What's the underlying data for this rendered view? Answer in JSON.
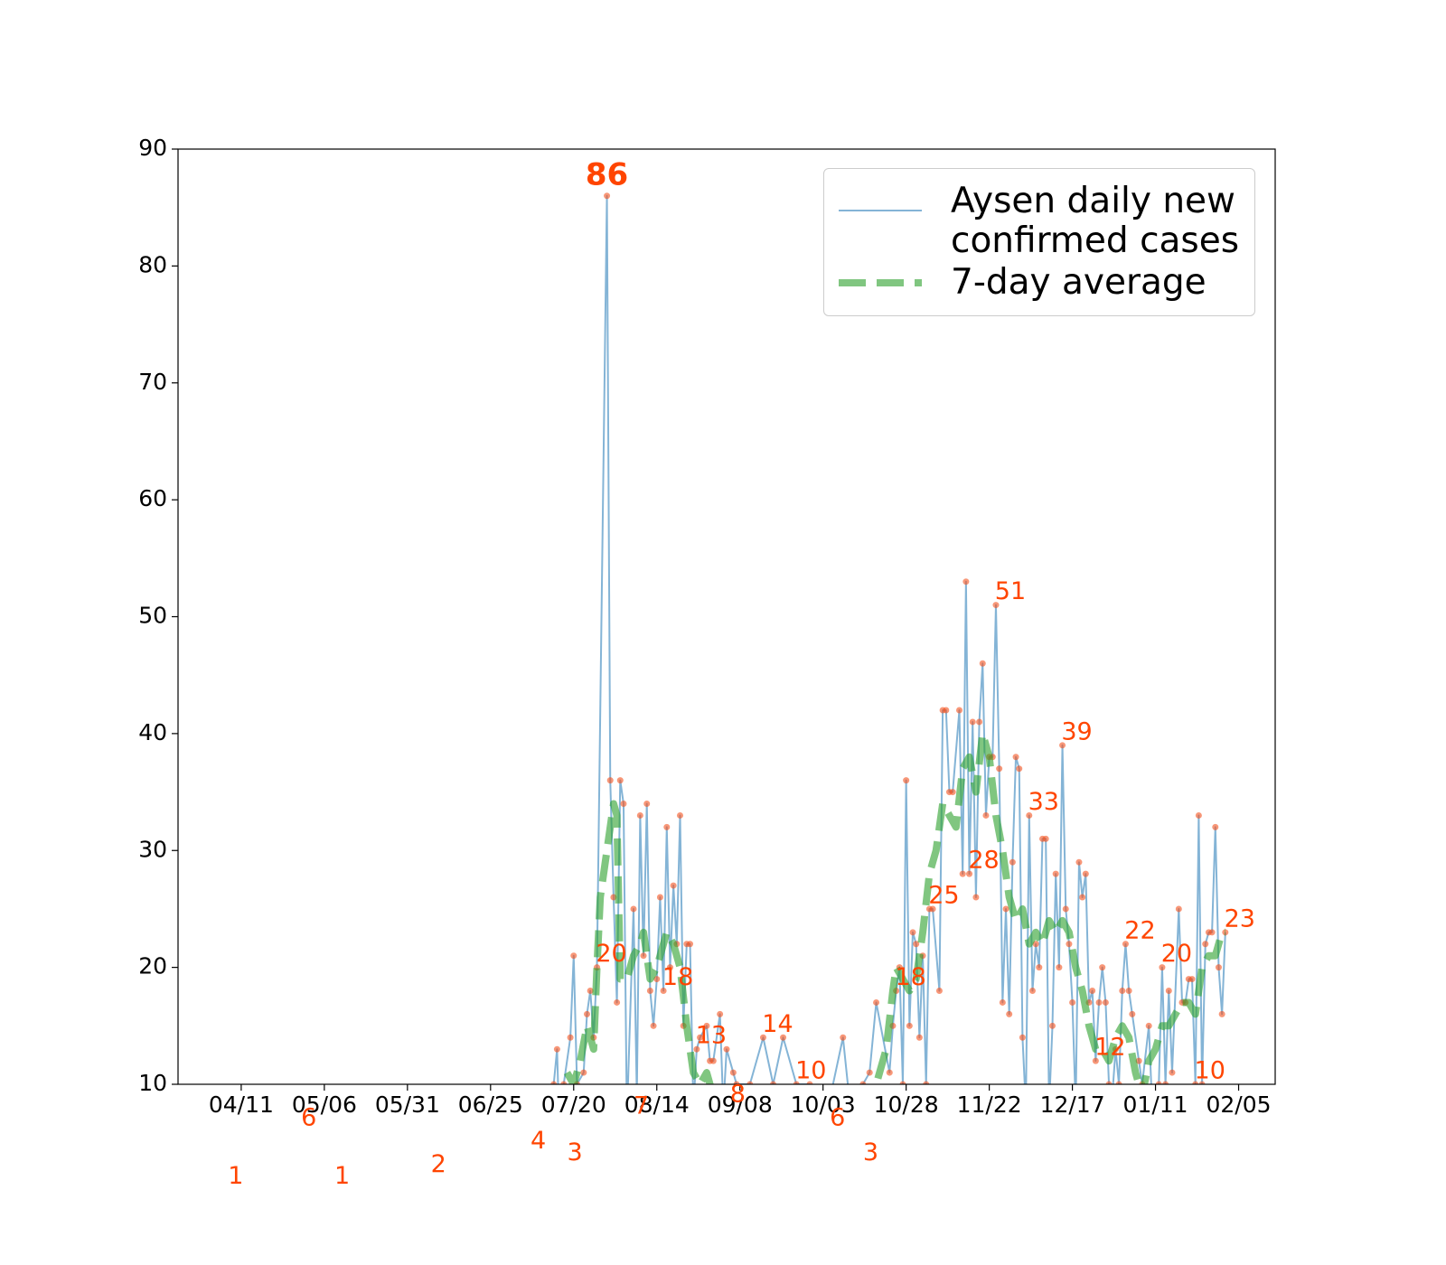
{
  "chart_data": {
    "type": "line",
    "legend": "upper right",
    "label_color": "#ff4500",
    "marker_color": "#f4511e",
    "xlim": [
      "03/23",
      "02/16"
    ],
    "xticks": [
      "04/11",
      "05/06",
      "05/31",
      "06/25",
      "07/20",
      "08/14",
      "09/08",
      "10/03",
      "10/28",
      "11/22",
      "12/17",
      "01/11",
      "02/05"
    ],
    "ylim": [
      10,
      90
    ],
    "yticks": [
      10,
      20,
      30,
      40,
      50,
      60,
      70,
      80,
      90
    ],
    "series": [
      {
        "name": "Aysen daily new confirmed cases",
        "color": "#1f77b4",
        "x": [
          "04/05",
          "04/27",
          "05/07",
          "06/05",
          "07/05",
          "07/14",
          "07/15",
          "07/16",
          "07/17",
          "07/19",
          "07/20",
          "07/21",
          "07/23",
          "07/24",
          "07/25",
          "07/26",
          "07/27",
          "07/30",
          "07/31",
          "08/01",
          "08/02",
          "08/03",
          "08/04",
          "08/05",
          "08/07",
          "08/08",
          "08/09",
          "08/10",
          "08/11",
          "08/12",
          "08/13",
          "08/14",
          "08/15",
          "08/16",
          "08/17",
          "08/18",
          "08/19",
          "08/20",
          "08/21",
          "08/22",
          "08/23",
          "08/24",
          "08/25",
          "08/26",
          "08/27",
          "08/29",
          "08/30",
          "08/31",
          "09/02",
          "09/03",
          "09/04",
          "09/06",
          "09/07",
          "09/11",
          "09/15",
          "09/18",
          "09/21",
          "09/25",
          "09/29",
          "10/03",
          "10/09",
          "10/13",
          "10/15",
          "10/17",
          "10/19",
          "10/23",
          "10/24",
          "10/25",
          "10/26",
          "10/27",
          "10/28",
          "10/29",
          "10/30",
          "10/31",
          "11/01",
          "11/02",
          "11/03",
          "11/04",
          "11/05",
          "11/07",
          "11/08",
          "11/09",
          "11/10",
          "11/11",
          "11/13",
          "11/14",
          "11/15",
          "11/16",
          "11/17",
          "11/18",
          "11/19",
          "11/20",
          "11/21",
          "11/22",
          "11/23",
          "11/24",
          "11/25",
          "11/26",
          "11/27",
          "11/28",
          "11/29",
          "11/30",
          "12/01",
          "12/02",
          "12/03",
          "12/04",
          "12/05",
          "12/06",
          "12/07",
          "12/08",
          "12/09",
          "12/10",
          "12/11",
          "12/12",
          "12/13",
          "12/14",
          "12/15",
          "12/16",
          "12/17",
          "12/18",
          "12/19",
          "12/20",
          "12/21",
          "12/22",
          "12/23",
          "12/24",
          "12/25",
          "12/26",
          "12/27",
          "12/28",
          "12/29",
          "12/30",
          "12/31",
          "01/01",
          "01/02",
          "01/03",
          "01/04",
          "01/06",
          "01/07",
          "01/09",
          "01/10",
          "01/12",
          "01/13",
          "01/14",
          "01/15",
          "01/16",
          "01/18",
          "01/19",
          "01/20",
          "01/21",
          "01/22",
          "01/23",
          "01/24",
          "01/25",
          "01/26",
          "01/27",
          "01/28",
          "01/29",
          "01/30",
          "01/31",
          "02/01"
        ],
        "values": [
          1,
          6,
          1,
          2,
          4,
          10,
          13,
          3,
          10,
          14,
          21,
          10,
          11,
          16,
          18,
          14,
          20,
          86,
          36,
          26,
          17,
          36,
          34,
          7,
          25,
          9,
          33,
          21,
          34,
          18,
          15,
          19,
          26,
          18,
          32,
          20,
          27,
          22,
          33,
          15,
          22,
          22,
          8,
          13,
          14,
          15,
          12,
          12,
          16,
          8,
          13,
          11,
          10,
          10,
          14,
          10,
          14,
          10,
          10,
          6,
          14,
          3,
          10,
          11,
          17,
          11,
          15,
          18,
          20,
          10,
          36,
          15,
          23,
          22,
          14,
          21,
          10,
          25,
          25,
          18,
          42,
          42,
          35,
          35,
          42,
          28,
          53,
          28,
          41,
          26,
          41,
          46,
          33,
          38,
          38,
          51,
          37,
          17,
          25,
          16,
          29,
          38,
          37,
          14,
          8,
          33,
          18,
          22,
          20,
          31,
          31,
          8,
          15,
          28,
          20,
          39,
          25,
          22,
          17,
          8,
          29,
          26,
          28,
          17,
          18,
          12,
          17,
          20,
          17,
          10,
          9,
          13,
          10,
          18,
          22,
          18,
          16,
          12,
          10,
          15,
          8,
          10,
          20,
          10,
          18,
          11,
          25,
          17,
          17,
          19,
          19,
          10,
          33,
          10,
          22,
          23,
          23,
          32,
          20,
          16,
          23
        ],
        "value_labels": [
          "1",
          "6",
          "1",
          "2",
          "4",
          null,
          null,
          "3",
          null,
          null,
          null,
          null,
          null,
          null,
          null,
          null,
          "20",
          "86",
          null,
          null,
          null,
          null,
          null,
          "7",
          null,
          null,
          null,
          null,
          null,
          null,
          null,
          null,
          null,
          "18",
          null,
          null,
          null,
          null,
          null,
          null,
          null,
          null,
          null,
          "13",
          null,
          null,
          null,
          null,
          null,
          "8",
          null,
          null,
          null,
          null,
          "14",
          null,
          null,
          "10",
          null,
          "6",
          null,
          "3",
          null,
          null,
          null,
          null,
          null,
          "18",
          null,
          null,
          null,
          null,
          null,
          null,
          null,
          null,
          null,
          "25",
          null,
          null,
          null,
          null,
          null,
          null,
          null,
          null,
          null,
          "28",
          null,
          null,
          null,
          null,
          null,
          null,
          null,
          "51",
          null,
          null,
          null,
          null,
          null,
          null,
          null,
          null,
          null,
          "33",
          null,
          null,
          null,
          null,
          null,
          null,
          null,
          null,
          null,
          "39",
          null,
          null,
          null,
          null,
          null,
          null,
          null,
          null,
          null,
          "12",
          null,
          null,
          null,
          null,
          null,
          null,
          null,
          null,
          "22",
          null,
          null,
          null,
          null,
          null,
          null,
          null,
          "20",
          null,
          null,
          null,
          null,
          null,
          null,
          null,
          null,
          "10",
          null,
          null,
          null,
          null,
          null,
          null,
          null,
          null,
          "23"
        ]
      },
      {
        "name": "7-day average",
        "color": "#2ca02c",
        "x": [
          "07/18",
          "07/20",
          "07/22",
          "07/24",
          "07/26",
          "07/27",
          "07/28",
          "07/30",
          "08/01",
          "08/02",
          "08/03",
          "08/05",
          "08/07",
          "08/09",
          "08/10",
          "08/12",
          "08/14",
          "08/16",
          "08/17",
          "08/19",
          "08/21",
          "08/23",
          "08/25",
          "08/27",
          "08/29",
          "08/31",
          "09/10",
          "09/25",
          "10/10",
          "10/19",
          "10/22",
          "10/24",
          "10/25",
          "10/27",
          "10/29",
          "10/31",
          "11/02",
          "11/04",
          "11/06",
          "11/08",
          "11/10",
          "11/12",
          "11/14",
          "11/16",
          "11/18",
          "11/20",
          "11/22",
          "11/24",
          "11/26",
          "11/28",
          "11/30",
          "12/02",
          "12/04",
          "12/06",
          "12/08",
          "12/10",
          "12/12",
          "12/14",
          "12/16",
          "12/18",
          "12/20",
          "12/22",
          "12/24",
          "12/26",
          "12/28",
          "12/30",
          "01/01",
          "01/03",
          "01/05",
          "01/07",
          "01/09",
          "01/11",
          "01/13",
          "01/15",
          "01/17",
          "01/19",
          "01/21",
          "01/23",
          "01/25",
          "01/27",
          "01/29",
          "01/31",
          "02/01"
        ],
        "values": [
          11,
          10,
          12,
          15,
          13,
          20,
          26,
          30,
          34,
          33,
          19,
          19,
          21,
          22,
          23,
          19,
          20,
          22,
          23,
          22,
          20,
          15,
          11,
          10,
          11,
          9,
          8,
          6,
          7,
          10,
          13,
          18,
          20,
          19,
          18,
          19,
          23,
          28,
          30,
          34,
          33,
          32,
          37,
          38,
          35,
          40,
          38,
          33,
          30,
          26,
          24,
          25,
          22,
          23,
          22,
          24,
          23,
          24,
          23,
          20,
          18,
          15,
          13,
          13,
          12,
          14,
          15,
          14,
          11,
          9,
          12,
          13,
          15,
          15,
          16,
          17,
          17,
          16,
          20,
          21,
          21,
          23,
          23
        ]
      }
    ]
  }
}
